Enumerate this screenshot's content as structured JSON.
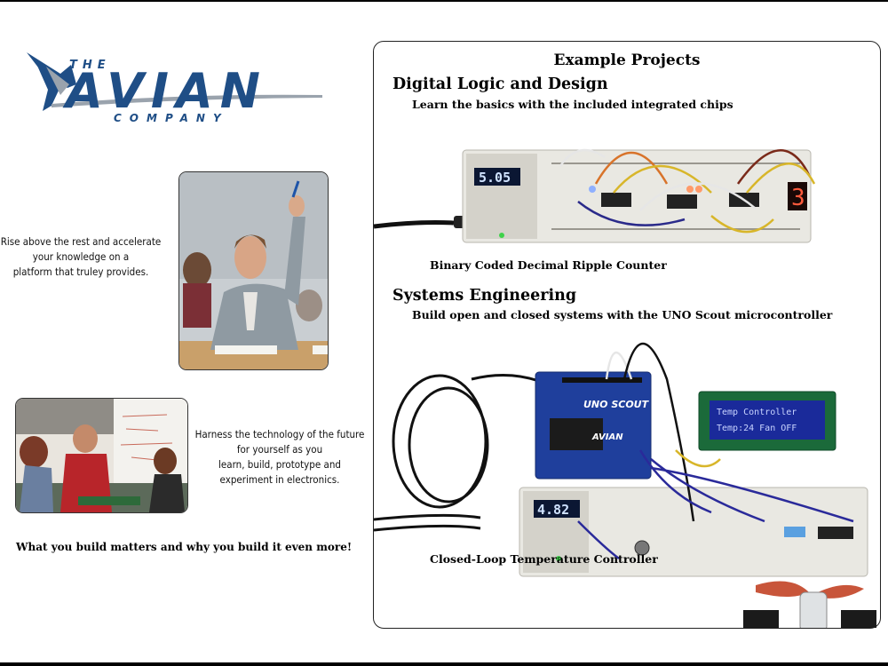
{
  "logo": {
    "top": "THE",
    "main": "AVIAN",
    "bottom": "COMPANY",
    "colors": {
      "blue": "#1f4e86",
      "grey": "#9aa3ad"
    }
  },
  "left": {
    "blurb1": [
      "Rise above the rest and accelerate",
      "your knowledge on a",
      "platform that truley provides."
    ],
    "blurb2": [
      "Harness the technology of the future",
      "for yourself as you",
      "learn, build, prototype and",
      "experiment in electronics."
    ],
    "tagline": "What you build matters and why you build it even more!"
  },
  "panel": {
    "title": "Example Projects",
    "section1": {
      "heading": "Digital Logic and Design",
      "subtitle": "Learn the basics with the included integrated chips",
      "caption": "Binary Coded Decimal Ripple Counter",
      "voltage_display": "5.05",
      "digit_display": "3"
    },
    "section2": {
      "heading": "Systems Engineering",
      "subtitle": "Build open and closed systems with the UNO Scout microcontroller",
      "caption": "Closed-Loop Temperature Controller",
      "voltage_display": "4.82",
      "lcd_line1": "Temp Controller",
      "lcd_line2": "Temp:24  Fan OFF",
      "board_label": "UNO SCOUT",
      "board_brand": "AVIAN"
    }
  }
}
